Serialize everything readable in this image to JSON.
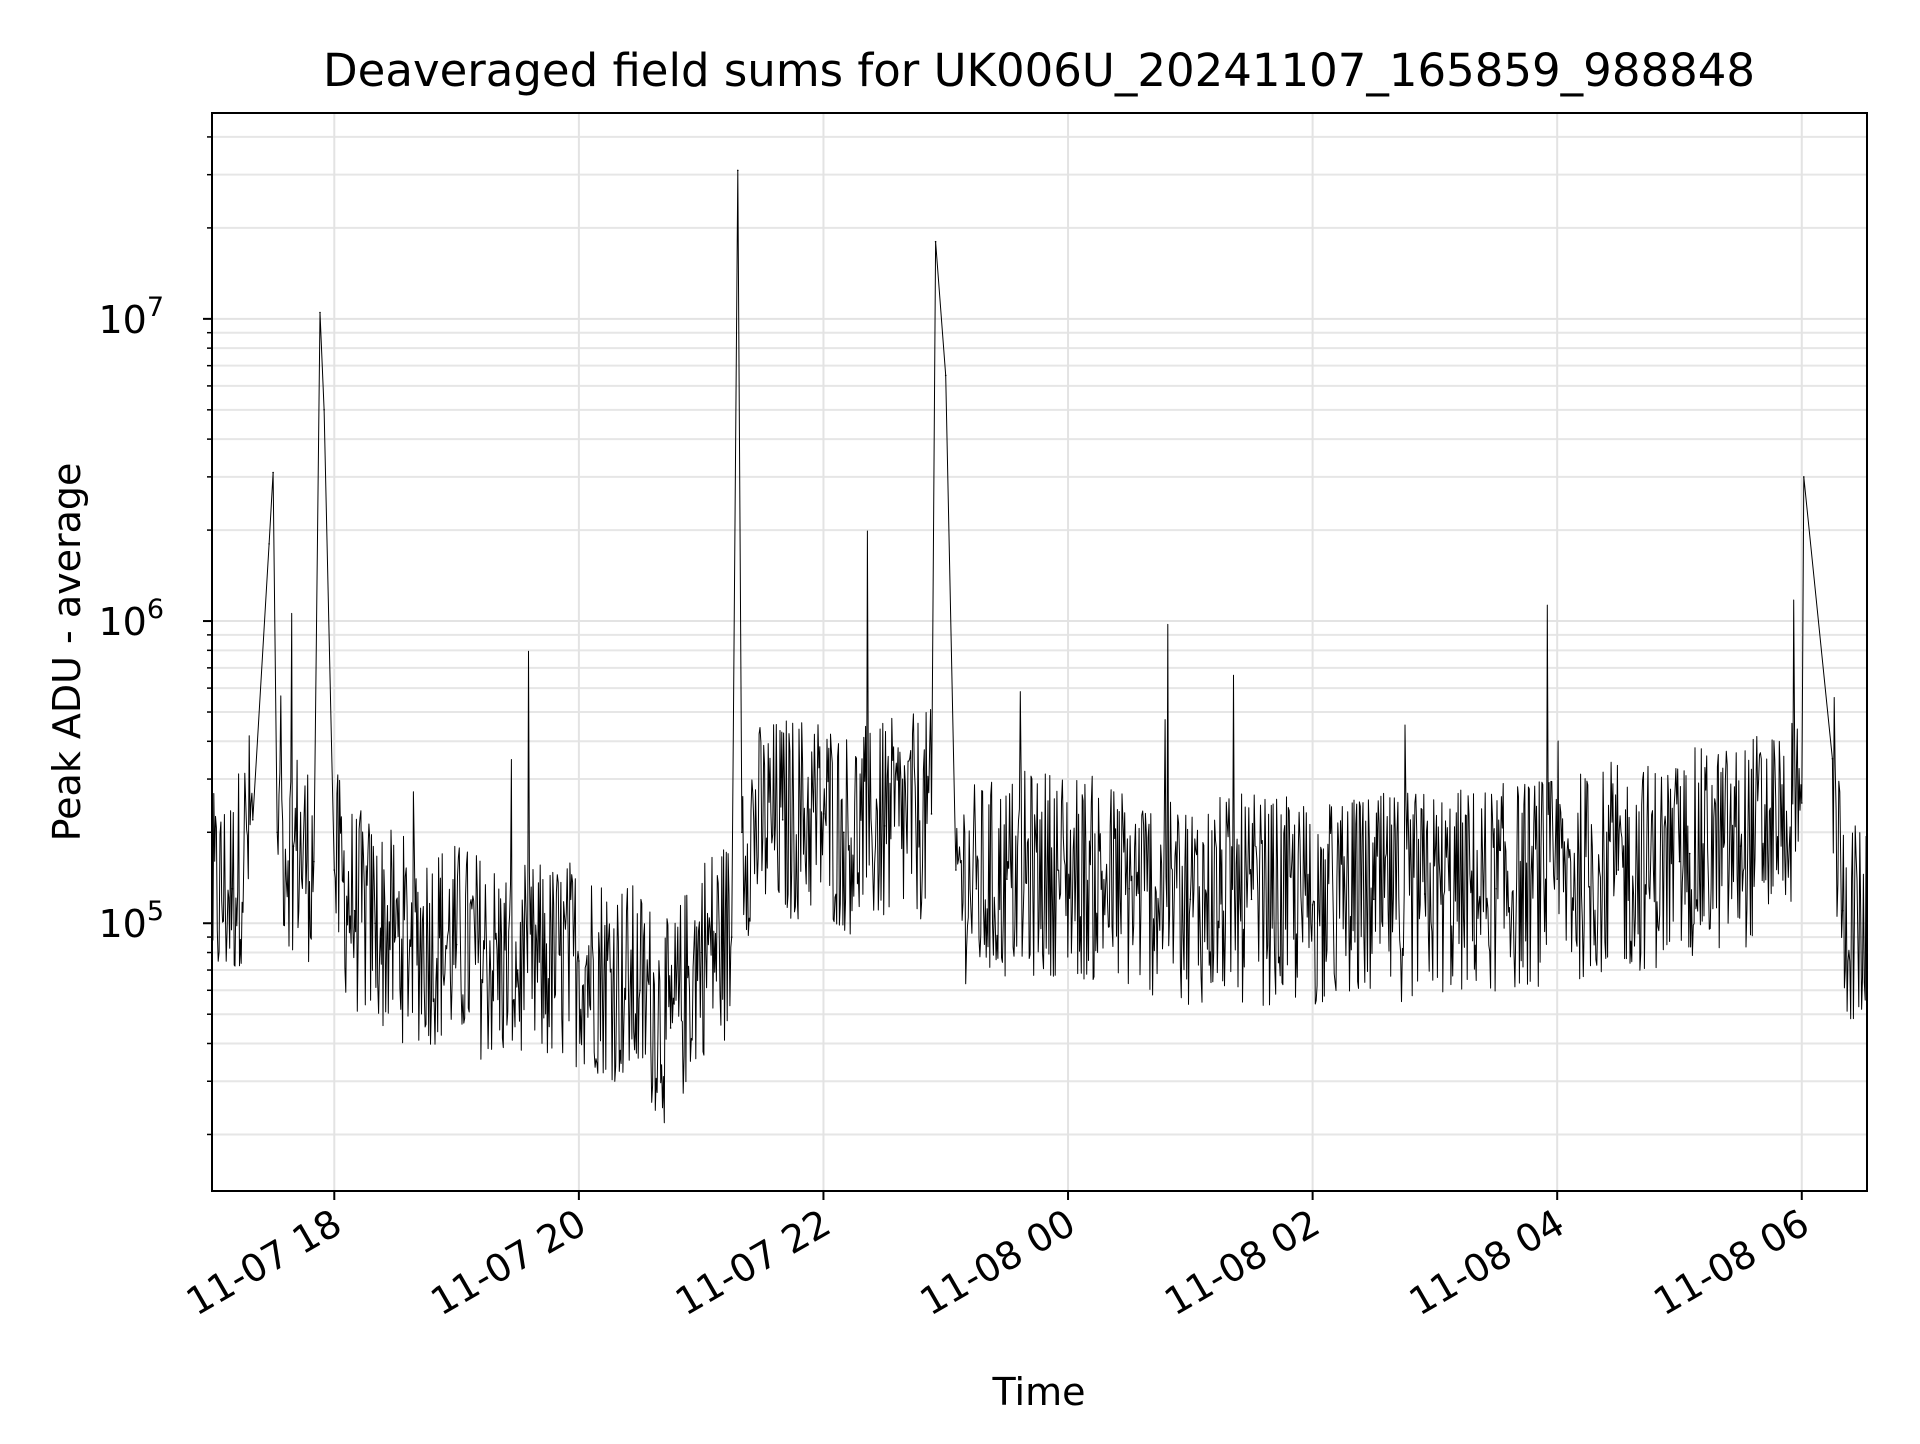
{
  "chart_data": {
    "type": "line",
    "title": "Deaveraged field sums for UK006U_20241107_165859_988848",
    "xlabel": "Time",
    "ylabel": "Peak ADU - average",
    "yscale": "log",
    "grid": true,
    "legend": "none",
    "x_range": [
      "2024-11-07 17:00",
      "2024-11-08 06:32"
    ],
    "y_range": [
      13000,
      48000000
    ],
    "x_ticks": [
      {
        "time": "2024-11-07 18:00",
        "label": "11-07 18"
      },
      {
        "time": "2024-11-07 20:00",
        "label": "11-07 20"
      },
      {
        "time": "2024-11-07 22:00",
        "label": "11-07 22"
      },
      {
        "time": "2024-11-08 00:00",
        "label": "11-08 00"
      },
      {
        "time": "2024-11-08 02:00",
        "label": "11-08 02"
      },
      {
        "time": "2024-11-08 04:00",
        "label": "11-08 04"
      },
      {
        "time": "2024-11-08 06:00",
        "label": "11-08 06"
      }
    ],
    "y_ticks": [
      {
        "value": 100000,
        "base": "10",
        "exp": "5"
      },
      {
        "value": 1000000,
        "base": "10",
        "exp": "6"
      },
      {
        "value": 10000000,
        "base": "10",
        "exp": "7"
      }
    ],
    "series": [
      {
        "color": "#000000",
        "line_width": 1,
        "x": [
          "2024-11-07 17:00",
          "2024-11-07 17:10",
          "2024-11-07 17:20",
          "2024-11-07 17:28",
          "2024-11-07 17:30",
          "2024-11-07 17:32",
          "2024-11-07 17:40",
          "2024-11-07 17:50",
          "2024-11-07 17:53",
          "2024-11-07 17:55",
          "2024-11-07 18:00",
          "2024-11-07 18:10",
          "2024-11-07 18:20",
          "2024-11-07 18:30",
          "2024-11-07 19:00",
          "2024-11-07 19:30",
          "2024-11-07 20:00",
          "2024-11-07 20:30",
          "2024-11-07 20:45",
          "2024-11-07 21:00",
          "2024-11-07 21:15",
          "2024-11-07 21:18",
          "2024-11-07 21:20",
          "2024-11-07 21:40",
          "2024-11-07 22:00",
          "2024-11-07 22:10",
          "2024-11-07 22:30",
          "2024-11-07 22:53",
          "2024-11-07 22:55",
          "2024-11-07 23:00",
          "2024-11-07 23:05",
          "2024-11-07 23:15",
          "2024-11-07 23:30",
          "2024-11-07 23:55",
          "2024-11-08 00:30",
          "2024-11-08 01:00",
          "2024-11-08 01:30",
          "2024-11-08 02:00",
          "2024-11-08 02:30",
          "2024-11-08 02:55",
          "2024-11-08 03:30",
          "2024-11-08 04:00",
          "2024-11-08 04:30",
          "2024-11-08 05:00",
          "2024-11-08 05:05",
          "2024-11-08 05:30",
          "2024-11-08 06:00",
          "2024-11-08 06:01",
          "2024-11-08 06:15",
          "2024-11-08 06:20",
          "2024-11-08 06:32"
        ],
        "y": [
          120000,
          130000,
          220000,
          1800000,
          3100000,
          200000,
          180000,
          160000,
          10500000,
          5000000,
          150000,
          110000,
          100000,
          90000,
          85000,
          70000,
          75000,
          60000,
          45000,
          80000,
          90000,
          31000000,
          200000,
          220000,
          230000,
          200000,
          210000,
          230000,
          18000000,
          6500000,
          150000,
          130000,
          140000,
          150000,
          130000,
          120000,
          120000,
          115000,
          120000,
          125000,
          130000,
          140000,
          150000,
          160000,
          170000,
          180000,
          250000,
          3000000,
          350000,
          110000,
          90000
        ]
      }
    ]
  }
}
